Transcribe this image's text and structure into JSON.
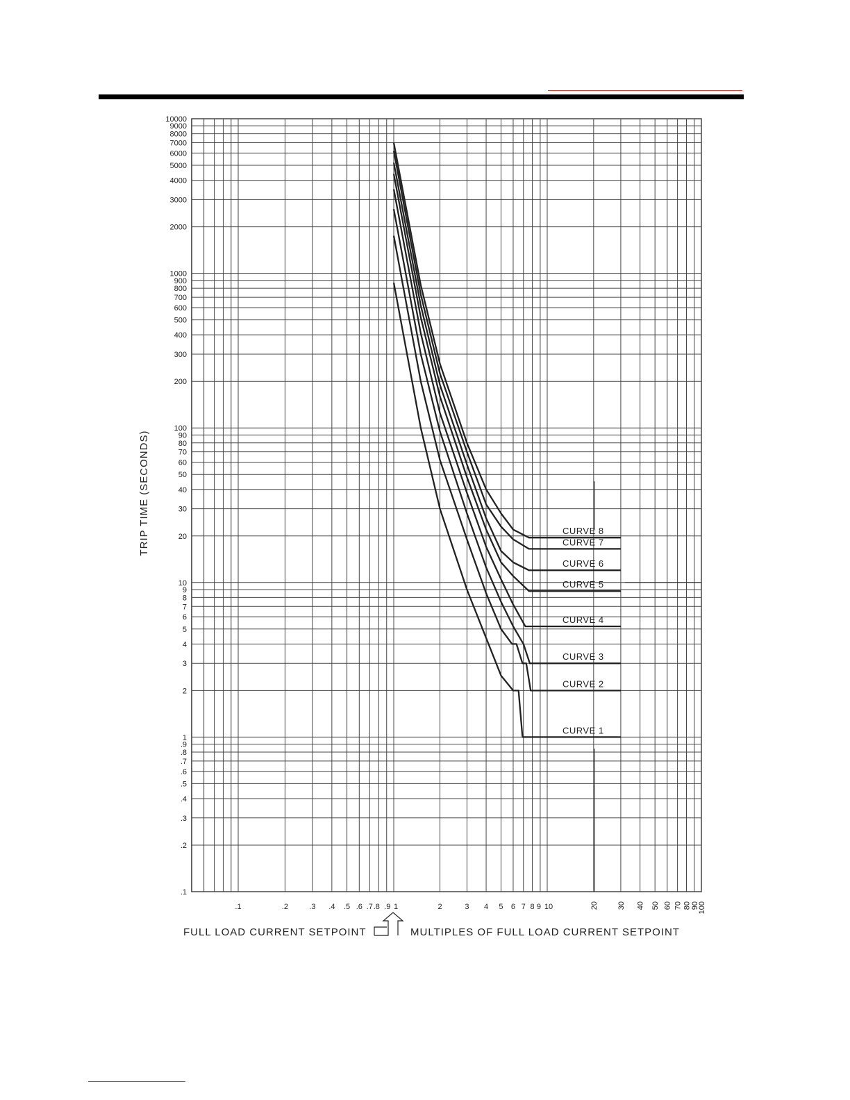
{
  "chart_data": {
    "type": "line",
    "xscale": "log",
    "yscale": "log",
    "xlim": [
      0.05,
      100
    ],
    "ylim": [
      0.1,
      10000
    ],
    "grid": true,
    "ylabel": "TRIP TIME (SECONDS)",
    "xlabel_left": "FULL LOAD CURRENT SETPOINT",
    "xlabel_right": "MULTIPLES OF FULL LOAD CURRENT SETPOINT",
    "y_ticks": [
      {
        "v": 10000,
        "label": "10000"
      },
      {
        "v": 9000,
        "label": "9000"
      },
      {
        "v": 8000,
        "label": "8000"
      },
      {
        "v": 7000,
        "label": "7000"
      },
      {
        "v": 6000,
        "label": "6000"
      },
      {
        "v": 5000,
        "label": "5000"
      },
      {
        "v": 4000,
        "label": "4000"
      },
      {
        "v": 3000,
        "label": "3000"
      },
      {
        "v": 2000,
        "label": "2000"
      },
      {
        "v": 1000,
        "label": "1000"
      },
      {
        "v": 900,
        "label": "900"
      },
      {
        "v": 800,
        "label": "800"
      },
      {
        "v": 700,
        "label": "700"
      },
      {
        "v": 600,
        "label": "600"
      },
      {
        "v": 500,
        "label": "500"
      },
      {
        "v": 400,
        "label": "400"
      },
      {
        "v": 300,
        "label": "300"
      },
      {
        "v": 200,
        "label": "200"
      },
      {
        "v": 100,
        "label": "100"
      },
      {
        "v": 90,
        "label": "90"
      },
      {
        "v": 80,
        "label": "80"
      },
      {
        "v": 70,
        "label": "70"
      },
      {
        "v": 60,
        "label": "60"
      },
      {
        "v": 50,
        "label": "50"
      },
      {
        "v": 40,
        "label": "40"
      },
      {
        "v": 30,
        "label": "30"
      },
      {
        "v": 20,
        "label": "20"
      },
      {
        "v": 10,
        "label": "10"
      },
      {
        "v": 9,
        "label": "9"
      },
      {
        "v": 8,
        "label": "8"
      },
      {
        "v": 7,
        "label": "7"
      },
      {
        "v": 6,
        "label": "6"
      },
      {
        "v": 5,
        "label": "5"
      },
      {
        "v": 4,
        "label": "4"
      },
      {
        "v": 3,
        "label": "3"
      },
      {
        "v": 2,
        "label": "2"
      },
      {
        "v": 1,
        "label": "1"
      },
      {
        "v": 0.9,
        "label": ".9"
      },
      {
        "v": 0.8,
        "label": ".8"
      },
      {
        "v": 0.7,
        "label": ".7"
      },
      {
        "v": 0.6,
        "label": ".6"
      },
      {
        "v": 0.5,
        "label": ".5"
      },
      {
        "v": 0.4,
        "label": ".4"
      },
      {
        "v": 0.3,
        "label": ".3"
      },
      {
        "v": 0.2,
        "label": ".2"
      },
      {
        "v": 0.1,
        "label": ".1"
      }
    ],
    "x_ticks": [
      {
        "v": 0.1,
        "label": ".1"
      },
      {
        "v": 0.2,
        "label": ".2"
      },
      {
        "v": 0.3,
        "label": ".3"
      },
      {
        "v": 0.4,
        "label": ".4"
      },
      {
        "v": 0.5,
        "label": ".5"
      },
      {
        "v": 0.6,
        "label": ".6"
      },
      {
        "v": 0.7,
        "label": ".7"
      },
      {
        "v": 0.8,
        "label": ".8"
      },
      {
        "v": 0.9,
        "label": ".9"
      },
      {
        "v": 1,
        "label": "1"
      },
      {
        "v": 2,
        "label": "2"
      },
      {
        "v": 3,
        "label": "3"
      },
      {
        "v": 4,
        "label": "4"
      },
      {
        "v": 5,
        "label": "5"
      },
      {
        "v": 6,
        "label": "6"
      },
      {
        "v": 7,
        "label": "7"
      },
      {
        "v": 8,
        "label": "8"
      },
      {
        "v": 9,
        "label": "9"
      },
      {
        "v": 10,
        "label": "10"
      }
    ],
    "x_ticks_rotated": [
      {
        "v": 20,
        "label": "20"
      },
      {
        "v": 30,
        "label": "30"
      },
      {
        "v": 40,
        "label": "40"
      },
      {
        "v": 50,
        "label": "50"
      },
      {
        "v": 60,
        "label": "60"
      },
      {
        "v": 70,
        "label": "70"
      },
      {
        "v": 80,
        "label": "80"
      },
      {
        "v": 90,
        "label": "90"
      },
      {
        "v": 100,
        "label": "100"
      }
    ],
    "series": [
      {
        "name": "CURVE 1",
        "points": [
          [
            1.0,
            870
          ],
          [
            1.5,
            100
          ],
          [
            2.0,
            30
          ],
          [
            3.0,
            9
          ],
          [
            5.0,
            2.5
          ],
          [
            6.0,
            2.0
          ],
          [
            6.5,
            2.0
          ],
          [
            6.9,
            1.0
          ],
          [
            30,
            1.0
          ]
        ]
      },
      {
        "name": "CURVE 2",
        "points": [
          [
            1.0,
            1750
          ],
          [
            1.5,
            200
          ],
          [
            2.0,
            62
          ],
          [
            3.0,
            19
          ],
          [
            4.0,
            8.5
          ],
          [
            5.0,
            5.0
          ],
          [
            5.9,
            4.0
          ],
          [
            6.3,
            4.0
          ],
          [
            6.9,
            3.0
          ],
          [
            7.3,
            3.0
          ],
          [
            7.8,
            2.0
          ],
          [
            30,
            2.0
          ]
        ]
      },
      {
        "name": "CURVE 3",
        "points": [
          [
            1.0,
            2600
          ],
          [
            1.5,
            300
          ],
          [
            2.0,
            95
          ],
          [
            3.0,
            28
          ],
          [
            4.0,
            12.5
          ],
          [
            5.0,
            7.5
          ],
          [
            6.0,
            5.2
          ],
          [
            7.0,
            4.0
          ],
          [
            7.7,
            3.0
          ],
          [
            30,
            3.0
          ]
        ]
      },
      {
        "name": "CURVE 4",
        "points": [
          [
            1.0,
            3500
          ],
          [
            1.5,
            410
          ],
          [
            2.0,
            125
          ],
          [
            3.0,
            38
          ],
          [
            4.0,
            17
          ],
          [
            5.0,
            10.5
          ],
          [
            6.0,
            7.2
          ],
          [
            7.2,
            5.2
          ],
          [
            30,
            5.2
          ]
        ]
      },
      {
        "name": "CURVE 5",
        "points": [
          [
            1.0,
            4400
          ],
          [
            1.5,
            520
          ],
          [
            2.0,
            160
          ],
          [
            3.0,
            48
          ],
          [
            4.0,
            22
          ],
          [
            5.0,
            13.5
          ],
          [
            6.0,
            11.0
          ],
          [
            7.6,
            8.8
          ],
          [
            30,
            8.8
          ]
        ]
      },
      {
        "name": "CURVE 6",
        "points": [
          [
            1.0,
            5200
          ],
          [
            1.5,
            620
          ],
          [
            2.0,
            190
          ],
          [
            3.0,
            58
          ],
          [
            4.0,
            26
          ],
          [
            5.0,
            16
          ],
          [
            6.0,
            13.5
          ],
          [
            7.6,
            12.0
          ],
          [
            30,
            12.0
          ]
        ]
      },
      {
        "name": "CURVE 7",
        "points": [
          [
            1.0,
            6200
          ],
          [
            1.5,
            730
          ],
          [
            2.0,
            225
          ],
          [
            3.0,
            70
          ],
          [
            4.0,
            32
          ],
          [
            5.0,
            23
          ],
          [
            6.0,
            19
          ],
          [
            7.6,
            16.5
          ],
          [
            30,
            16.5
          ]
        ]
      },
      {
        "name": "CURVE 8",
        "points": [
          [
            1.0,
            7000
          ],
          [
            1.5,
            840
          ],
          [
            2.0,
            260
          ],
          [
            3.0,
            80
          ],
          [
            4.0,
            40
          ],
          [
            5.0,
            28
          ],
          [
            6.0,
            22
          ],
          [
            7.6,
            19.5
          ],
          [
            30,
            19.5
          ]
        ]
      }
    ]
  }
}
